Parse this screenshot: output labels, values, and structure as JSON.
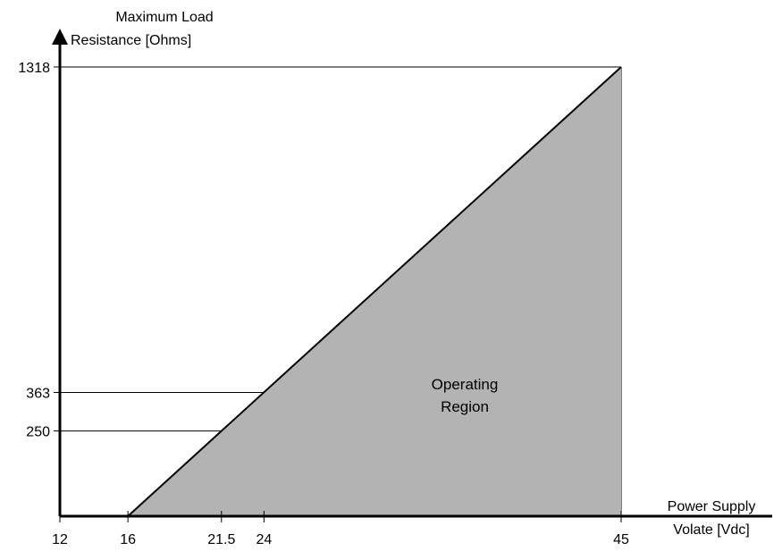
{
  "chart_data": {
    "type": "area",
    "y_axis_title": [
      "Maximum Load",
      "Resistance [Ohms]"
    ],
    "x_axis_title": [
      "Power Supply",
      "Volate [Vdc]"
    ],
    "region_label": [
      "Operating",
      "Region"
    ],
    "x_ticks": [
      "12",
      "16",
      "21.5",
      "24",
      "45"
    ],
    "y_ticks": [
      "1318",
      "363",
      "250"
    ],
    "xlim": [
      12,
      45
    ],
    "ylim": [
      0,
      1318
    ],
    "line": {
      "x": [
        16,
        45
      ],
      "y": [
        0,
        1318
      ]
    },
    "reference_points": [
      {
        "x": 21.5,
        "y": 250
      },
      {
        "x": 24,
        "y": 363
      },
      {
        "x": 45,
        "y": 1318
      }
    ],
    "colors": {
      "region_fill": "#b3b3b3",
      "axis": "#000000"
    }
  }
}
